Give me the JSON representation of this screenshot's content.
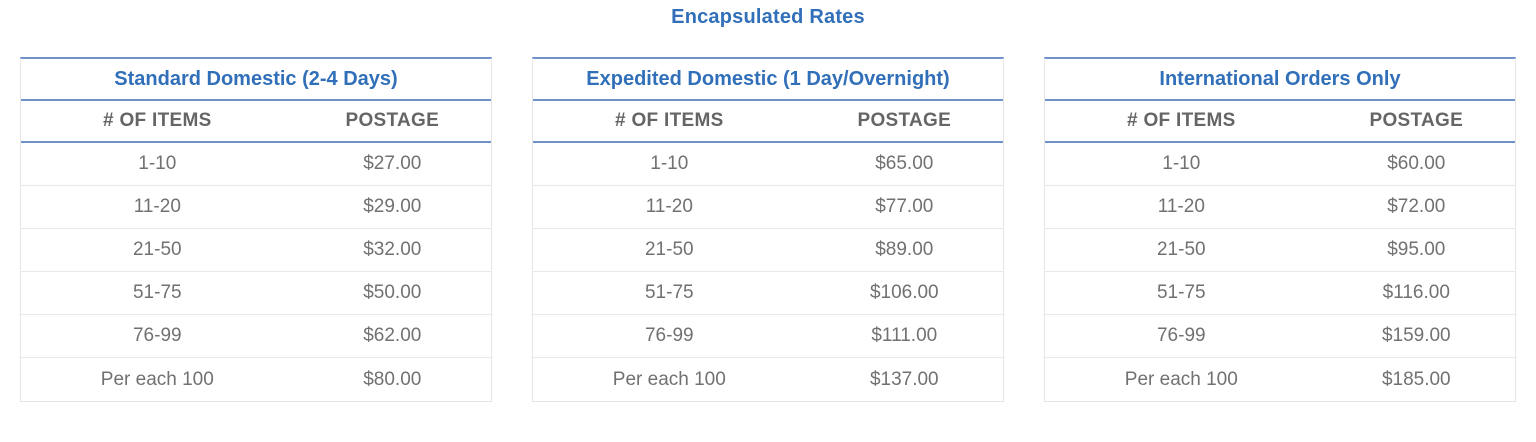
{
  "page": {
    "title": "Encapsulated Rates"
  },
  "colors": {
    "accent_text_blue": "#3170b9",
    "rule_blue": "#6f93c6",
    "light_border_gray": "#e5e5e5",
    "header_text_gray": "#656565",
    "body_text_gray": "#717171"
  },
  "tables": [
    {
      "title": "Standard Domestic (2-4 Days)",
      "columns": [
        "# OF ITEMS",
        "POSTAGE"
      ],
      "rows": [
        {
          "items": "1-10",
          "postage": "$27.00"
        },
        {
          "items": "11-20",
          "postage": "$29.00"
        },
        {
          "items": "21-50",
          "postage": "$32.00"
        },
        {
          "items": "51-75",
          "postage": "$50.00"
        },
        {
          "items": "76-99",
          "postage": "$62.00"
        },
        {
          "items": "Per each 100",
          "postage": "$80.00"
        }
      ]
    },
    {
      "title": "Expedited Domestic (1 Day/Overnight)",
      "columns": [
        "# OF ITEMS",
        "POSTAGE"
      ],
      "rows": [
        {
          "items": "1-10",
          "postage": "$65.00"
        },
        {
          "items": "11-20",
          "postage": "$77.00"
        },
        {
          "items": "21-50",
          "postage": "$89.00"
        },
        {
          "items": "51-75",
          "postage": "$106.00"
        },
        {
          "items": "76-99",
          "postage": "$111.00"
        },
        {
          "items": "Per each 100",
          "postage": "$137.00"
        }
      ]
    },
    {
      "title": "International Orders Only",
      "columns": [
        "# OF ITEMS",
        "POSTAGE"
      ],
      "rows": [
        {
          "items": "1-10",
          "postage": "$60.00"
        },
        {
          "items": "11-20",
          "postage": "$72.00"
        },
        {
          "items": "21-50",
          "postage": "$95.00"
        },
        {
          "items": "51-75",
          "postage": "$116.00"
        },
        {
          "items": "76-99",
          "postage": "$159.00"
        },
        {
          "items": "Per each 100",
          "postage": "$185.00"
        }
      ]
    }
  ]
}
